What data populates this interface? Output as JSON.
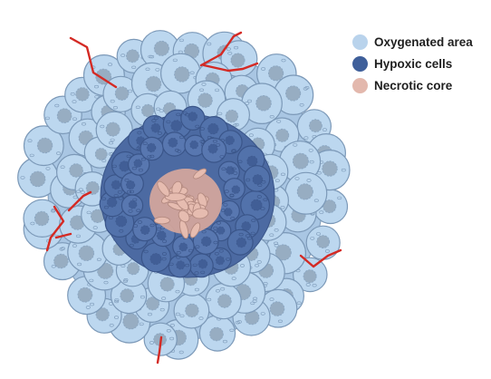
{
  "legend": {
    "items": [
      {
        "label": "Oxygenated area",
        "color": "#b9d3ec"
      },
      {
        "label": "Hypoxic cells",
        "color": "#3f5f9a"
      },
      {
        "label": "Necrotic core",
        "color": "#e3b8ad"
      }
    ]
  },
  "colors": {
    "oxygenated_fill": "#bcd7ef",
    "oxygenated_stroke": "#7c99b8",
    "oxygenated_nucleus": "#8ea3b8",
    "hypoxic_fill": "#5272ab",
    "hypoxic_stroke": "#3a5589",
    "necrotic_fill": "#e6bcb0",
    "necrotic_stroke": "#b48a80",
    "vessel": "#d42a24"
  }
}
